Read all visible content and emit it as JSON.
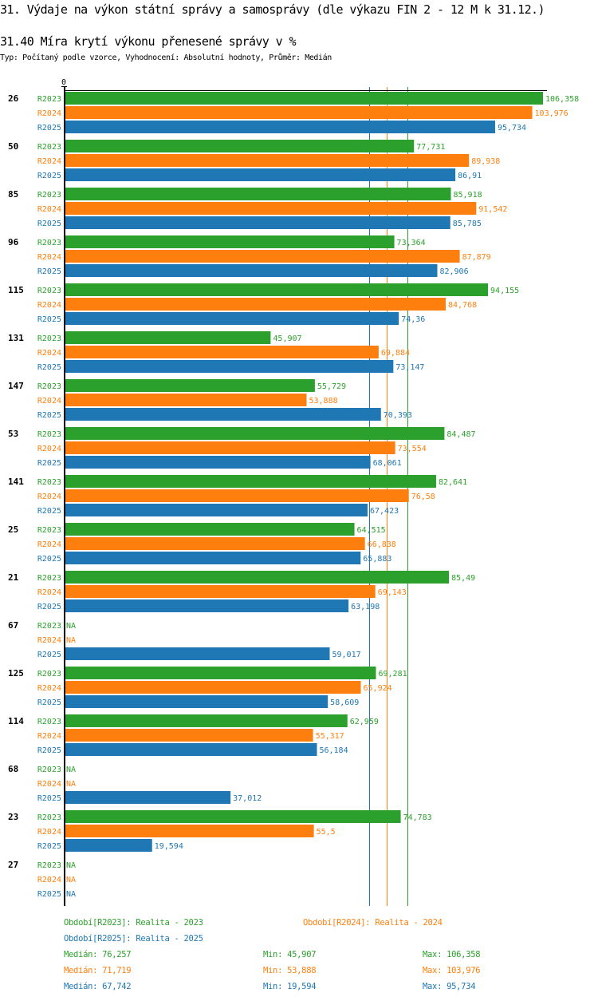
{
  "header": {
    "title": "31. Výdaje na výkon státní správy a samosprávy (dle výkazu FIN 2 - 12 M k 31.12.)",
    "subtitle": "31.40 Míra krytí výkonu přenesené správy v %",
    "meta": "Typ: Počítaný podle vzorce, Vyhodnocení: Absolutní hodnoty, Průměr: Medián"
  },
  "chart_data": {
    "type": "bar",
    "orientation": "horizontal",
    "title": "31.40 Míra krytí výkonu přenesené správy v %",
    "xlabel": "",
    "ylabel": "",
    "x_tick_labels": [
      "0"
    ],
    "xlim": [
      0,
      107
    ],
    "na_label": "NA",
    "categories": [
      "26",
      "50",
      "85",
      "96",
      "115",
      "131",
      "147",
      "53",
      "141",
      "25",
      "21",
      "67",
      "125",
      "114",
      "68",
      "23",
      "27"
    ],
    "series": [
      {
        "name": "R2023",
        "color": "#2ca02c",
        "values": [
          106.358,
          77.731,
          85.918,
          73.364,
          94.155,
          45.907,
          55.729,
          84.487,
          82.641,
          64.515,
          85.49,
          null,
          69.281,
          62.959,
          null,
          74.783,
          null
        ],
        "labels": [
          "106,358",
          "77,731",
          "85,918",
          "73,364",
          "94,155",
          "45,907",
          "55,729",
          "84,487",
          "82,641",
          "64,515",
          "85,49",
          "NA",
          "69,281",
          "62,959",
          "NA",
          "74,783",
          "NA"
        ]
      },
      {
        "name": "R2024",
        "color": "#ff7f0e",
        "values": [
          103.976,
          89.938,
          91.542,
          87.879,
          84.768,
          69.884,
          53.888,
          73.554,
          76.58,
          66.838,
          69.143,
          null,
          65.924,
          55.317,
          null,
          55.5,
          null
        ],
        "labels": [
          "103,976",
          "89,938",
          "91,542",
          "87,879",
          "84,768",
          "69,884",
          "53,888",
          "73,554",
          "76,58",
          "66,838",
          "69,143",
          "NA",
          "65,924",
          "55,317",
          "NA",
          "55,5",
          "NA"
        ]
      },
      {
        "name": "R2025",
        "color": "#1f77b4",
        "values": [
          95.734,
          86.91,
          85.785,
          82.906,
          74.36,
          73.147,
          70.393,
          68.061,
          67.423,
          65.883,
          63.198,
          59.017,
          58.609,
          56.184,
          37.012,
          19.594,
          null
        ],
        "labels": [
          "95,734",
          "86,91",
          "85,785",
          "82,906",
          "74,36",
          "73,147",
          "70,393",
          "68,061",
          "67,423",
          "65,883",
          "63,198",
          "59,017",
          "58,609",
          "56,184",
          "37,012",
          "19,594",
          "NA"
        ]
      }
    ],
    "reference_lines": [
      {
        "series": "R2023",
        "type": "median",
        "value": 76.257,
        "color": "#2ca02c"
      },
      {
        "series": "R2024",
        "type": "median",
        "value": 71.719,
        "color": "#ff7f0e"
      },
      {
        "series": "R2025",
        "type": "median",
        "value": 67.742,
        "color": "#1f77b4"
      }
    ],
    "legend": {
      "placement": "bottom",
      "periods": [
        {
          "text": "Období[R2023]: Realita - 2023",
          "color": "#2ca02c"
        },
        {
          "text": "Období[R2024]: Realita - 2024",
          "color": "#ff7f0e"
        },
        {
          "text": "Období[R2025]: Realita - 2025",
          "color": "#1f77b4"
        }
      ],
      "stats": [
        {
          "median": "Medián: 76,257",
          "min": "Min: 45,907",
          "max": "Max: 106,358",
          "color": "#2ca02c"
        },
        {
          "median": "Medián: 71,719",
          "min": "Min: 53,888",
          "max": "Max: 103,976",
          "color": "#ff7f0e"
        },
        {
          "median": "Medián: 67,742",
          "min": "Min: 19,594",
          "max": "Max: 95,734",
          "color": "#1f77b4"
        }
      ]
    }
  }
}
